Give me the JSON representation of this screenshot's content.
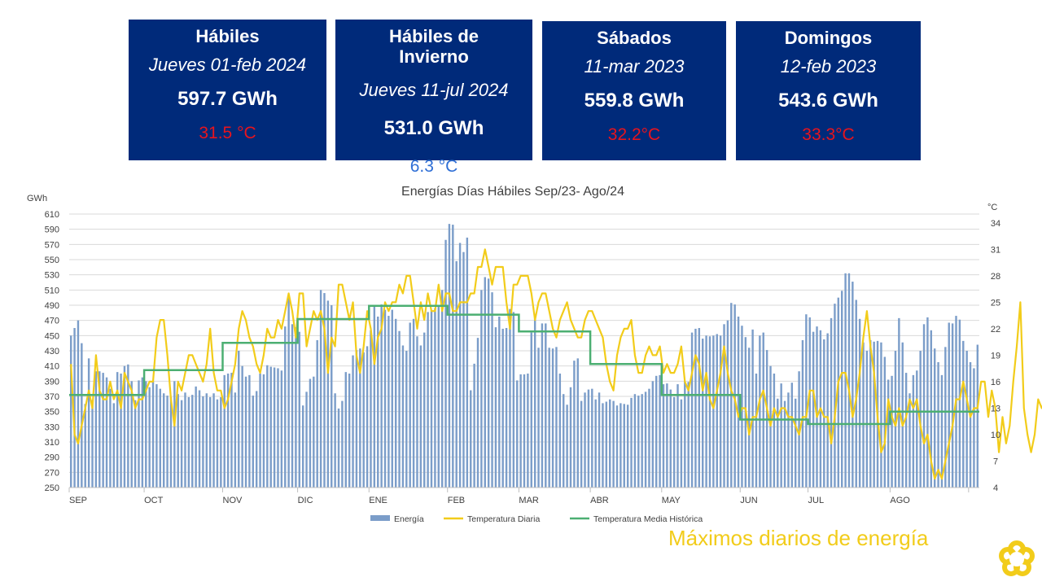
{
  "cards": [
    {
      "title": "Hábiles",
      "date": "Jueves 01-feb 2024",
      "energy": "597.7 GWh",
      "temp": "31.5 °C"
    },
    {
      "title": "Hábiles de Invierno",
      "date": "Jueves 11-jul 2024",
      "energy": "531.0 GWh",
      "temp": "6.3 °C"
    },
    {
      "title": "Sábados",
      "date": "11-mar 2023",
      "energy": "559.8 GWh",
      "temp": "32.2°C"
    },
    {
      "title": "Domingos",
      "date": "12-feb 2023",
      "energy": "543.6 GWh",
      "temp": "33.3°C"
    }
  ],
  "footer_note": "Máximos diarios de energía",
  "colors": {
    "card_bg": "#002a7a",
    "hot_temp": "#e8141d",
    "cold_temp": "#2f6fd6",
    "note": "#f2cc1a",
    "logo": "#f2cc1a"
  },
  "chart_data": {
    "type": "bar",
    "title": "Energías Días Hábiles Sep/23- Ago/24",
    "ylabel": "GWh",
    "y2label": "°C",
    "ylim": [
      250,
      610
    ],
    "yticks": [
      250,
      270,
      290,
      310,
      330,
      350,
      370,
      390,
      410,
      430,
      450,
      470,
      490,
      510,
      530,
      550,
      570,
      590,
      610
    ],
    "y2lim": [
      4,
      35
    ],
    "y2ticks": [
      4,
      7,
      10,
      13,
      16,
      19,
      22,
      25,
      28,
      31,
      34
    ],
    "grid": true,
    "legend_position": "bottom",
    "months": [
      {
        "label": "SEP",
        "start": 0
      },
      {
        "label": "OCT",
        "start": 21
      },
      {
        "label": "NOV",
        "start": 43
      },
      {
        "label": "DIC",
        "start": 64
      },
      {
        "label": "ENE",
        "start": 84
      },
      {
        "label": "FEB",
        "start": 106
      },
      {
        "label": "MAR",
        "start": 126
      },
      {
        "label": "ABR",
        "start": 146
      },
      {
        "label": "MAY",
        "start": 166
      },
      {
        "label": "JUN",
        "start": 188
      },
      {
        "label": "JUL",
        "start": 207
      },
      {
        "label": "AGO",
        "start": 230
      },
      {
        "label": "",
        "start": 252
      }
    ],
    "series": [
      {
        "name": "Energía",
        "type": "bar",
        "color": "#7b9dc9",
        "values": [
          450,
          460,
          470,
          440,
          360,
          420,
          365,
          403,
          403,
          401,
          395,
          380,
          361,
          402,
          400,
          410,
          412,
          390,
          365,
          391,
          395,
          390,
          382,
          390,
          386,
          380,
          374,
          371,
          369,
          390,
          373,
          365,
          375,
          369,
          372,
          383,
          378,
          370,
          374,
          369,
          374,
          366,
          369,
          398,
          400,
          401,
          375,
          430,
          410,
          396,
          398,
          371,
          377,
          400,
          399,
          411,
          409,
          408,
          407,
          404,
          462,
          502,
          465,
          461,
          455,
          358,
          376,
          393,
          396,
          444,
          510,
          506,
          496,
          490,
          374,
          354,
          364,
          402,
          400,
          424,
          431,
          433,
          428,
          436,
          457,
          489,
          475,
          491,
          484,
          476,
          484,
          472,
          456,
          437,
          430,
          467,
          472,
          449,
          437,
          454,
          481,
          483,
          486,
          488,
          510,
          576,
          597,
          596,
          548,
          572,
          560,
          579,
          378,
          413,
          447,
          510,
          527,
          525,
          507,
          461,
          475,
          459,
          460,
          485,
          481,
          391,
          399,
          399,
          400,
          454,
          474,
          434,
          466,
          466,
          434,
          433,
          435,
          400,
          373,
          359,
          382,
          417,
          420,
          364,
          375,
          379,
          380,
          366,
          375,
          361,
          363,
          366,
          364,
          358,
          361,
          360,
          359,
          368,
          373,
          371,
          373,
          376,
          380,
          390,
          397,
          398,
          386,
          387,
          379,
          369,
          386,
          366,
          390,
          389,
          454,
          459,
          460,
          446,
          450,
          449,
          450,
          452,
          450,
          465,
          470,
          493,
          491,
          475,
          463,
          448,
          434,
          458,
          400,
          450,
          454,
          431,
          410,
          400,
          367,
          387,
          364,
          375,
          388,
          367,
          403,
          444,
          478,
          474,
          455,
          462,
          457,
          445,
          453,
          473,
          492,
          500,
          509,
          532,
          532,
          521,
          497,
          472,
          441,
          430,
          444,
          442,
          443,
          441,
          422,
          392,
          397,
          430,
          473,
          441,
          401,
          374,
          398,
          404,
          430,
          465,
          474,
          457,
          433,
          415,
          398,
          435,
          467,
          466,
          476,
          471,
          443,
          430,
          415,
          407,
          438
        ]
      },
      {
        "name": "Temperatura Diaria",
        "type": "line",
        "color": "#f2cc1a",
        "values": [
          18,
          10,
          9,
          11,
          13,
          15,
          13,
          19,
          15,
          14,
          14,
          16,
          14,
          15,
          13,
          17,
          16,
          15,
          13,
          14,
          14,
          15,
          16,
          16,
          21,
          23,
          23,
          19,
          14,
          11,
          16,
          15,
          17,
          19,
          19,
          18,
          17,
          16,
          18,
          22,
          17,
          15,
          15,
          13,
          14,
          16,
          18,
          22,
          24,
          23,
          21,
          20,
          18,
          17,
          19,
          22,
          21,
          21,
          23,
          22,
          24,
          26,
          24,
          21,
          26,
          26,
          20,
          22,
          24,
          23,
          24,
          22,
          17,
          21,
          20,
          27,
          27,
          25,
          23,
          25,
          19,
          17,
          20,
          24,
          22,
          18,
          21,
          22,
          25,
          24,
          25,
          25,
          27,
          26,
          28,
          28,
          25,
          22,
          25,
          23,
          26,
          24,
          24,
          27,
          24,
          26,
          26,
          24,
          24,
          25,
          25,
          25,
          26,
          26,
          29,
          29,
          31,
          29,
          27,
          29,
          29,
          29,
          25,
          22,
          27,
          27,
          28,
          28,
          28,
          26,
          23,
          25,
          26,
          26,
          24,
          22,
          21,
          23,
          24,
          25,
          23,
          22,
          21,
          21,
          23,
          24,
          24,
          23,
          22,
          21,
          18,
          16,
          15,
          19,
          21,
          22,
          22,
          23,
          19,
          17,
          17,
          19,
          20,
          19,
          19,
          20,
          17,
          18,
          17,
          17,
          18,
          20,
          16,
          15,
          17,
          19,
          18,
          15,
          17,
          14,
          13,
          15,
          17,
          20,
          17,
          15,
          14,
          12,
          13,
          13,
          10,
          12,
          12,
          14,
          15,
          13,
          11,
          13,
          12,
          13,
          13,
          12,
          12,
          11,
          10,
          12,
          12,
          15,
          15,
          12,
          13,
          12,
          12,
          9,
          12,
          16,
          17,
          17,
          15,
          12,
          14,
          17,
          21,
          24,
          20,
          17,
          12,
          8,
          9,
          14,
          12,
          11,
          13,
          11,
          12,
          14,
          13,
          14,
          11,
          9,
          10,
          7,
          5,
          6,
          5,
          7,
          9,
          11,
          14,
          14,
          16,
          14,
          12,
          13,
          13,
          16,
          16,
          12,
          15,
          13,
          8,
          12,
          9,
          11,
          16,
          20,
          25,
          13,
          10,
          8,
          10,
          14,
          13,
          14,
          13,
          12,
          11,
          10,
          9,
          10,
          14,
          13,
          14,
          13,
          12
        ]
      },
      {
        "name": "Temperatura Media Histórica",
        "type": "step",
        "color": "#4caf72",
        "steps": [
          {
            "start": 0,
            "end": 21,
            "value": 14.5
          },
          {
            "start": 21,
            "end": 43,
            "value": 17.3
          },
          {
            "start": 43,
            "end": 64,
            "value": 20.4
          },
          {
            "start": 64,
            "end": 84,
            "value": 23.1
          },
          {
            "start": 84,
            "end": 106,
            "value": 24.6
          },
          {
            "start": 106,
            "end": 126,
            "value": 23.6
          },
          {
            "start": 126,
            "end": 146,
            "value": 21.7
          },
          {
            "start": 146,
            "end": 166,
            "value": 18.0
          },
          {
            "start": 166,
            "end": 188,
            "value": 14.5
          },
          {
            "start": 188,
            "end": 207,
            "value": 11.7
          },
          {
            "start": 207,
            "end": 230,
            "value": 11.2
          },
          {
            "start": 230,
            "end": 257,
            "value": 12.6
          }
        ]
      }
    ]
  }
}
